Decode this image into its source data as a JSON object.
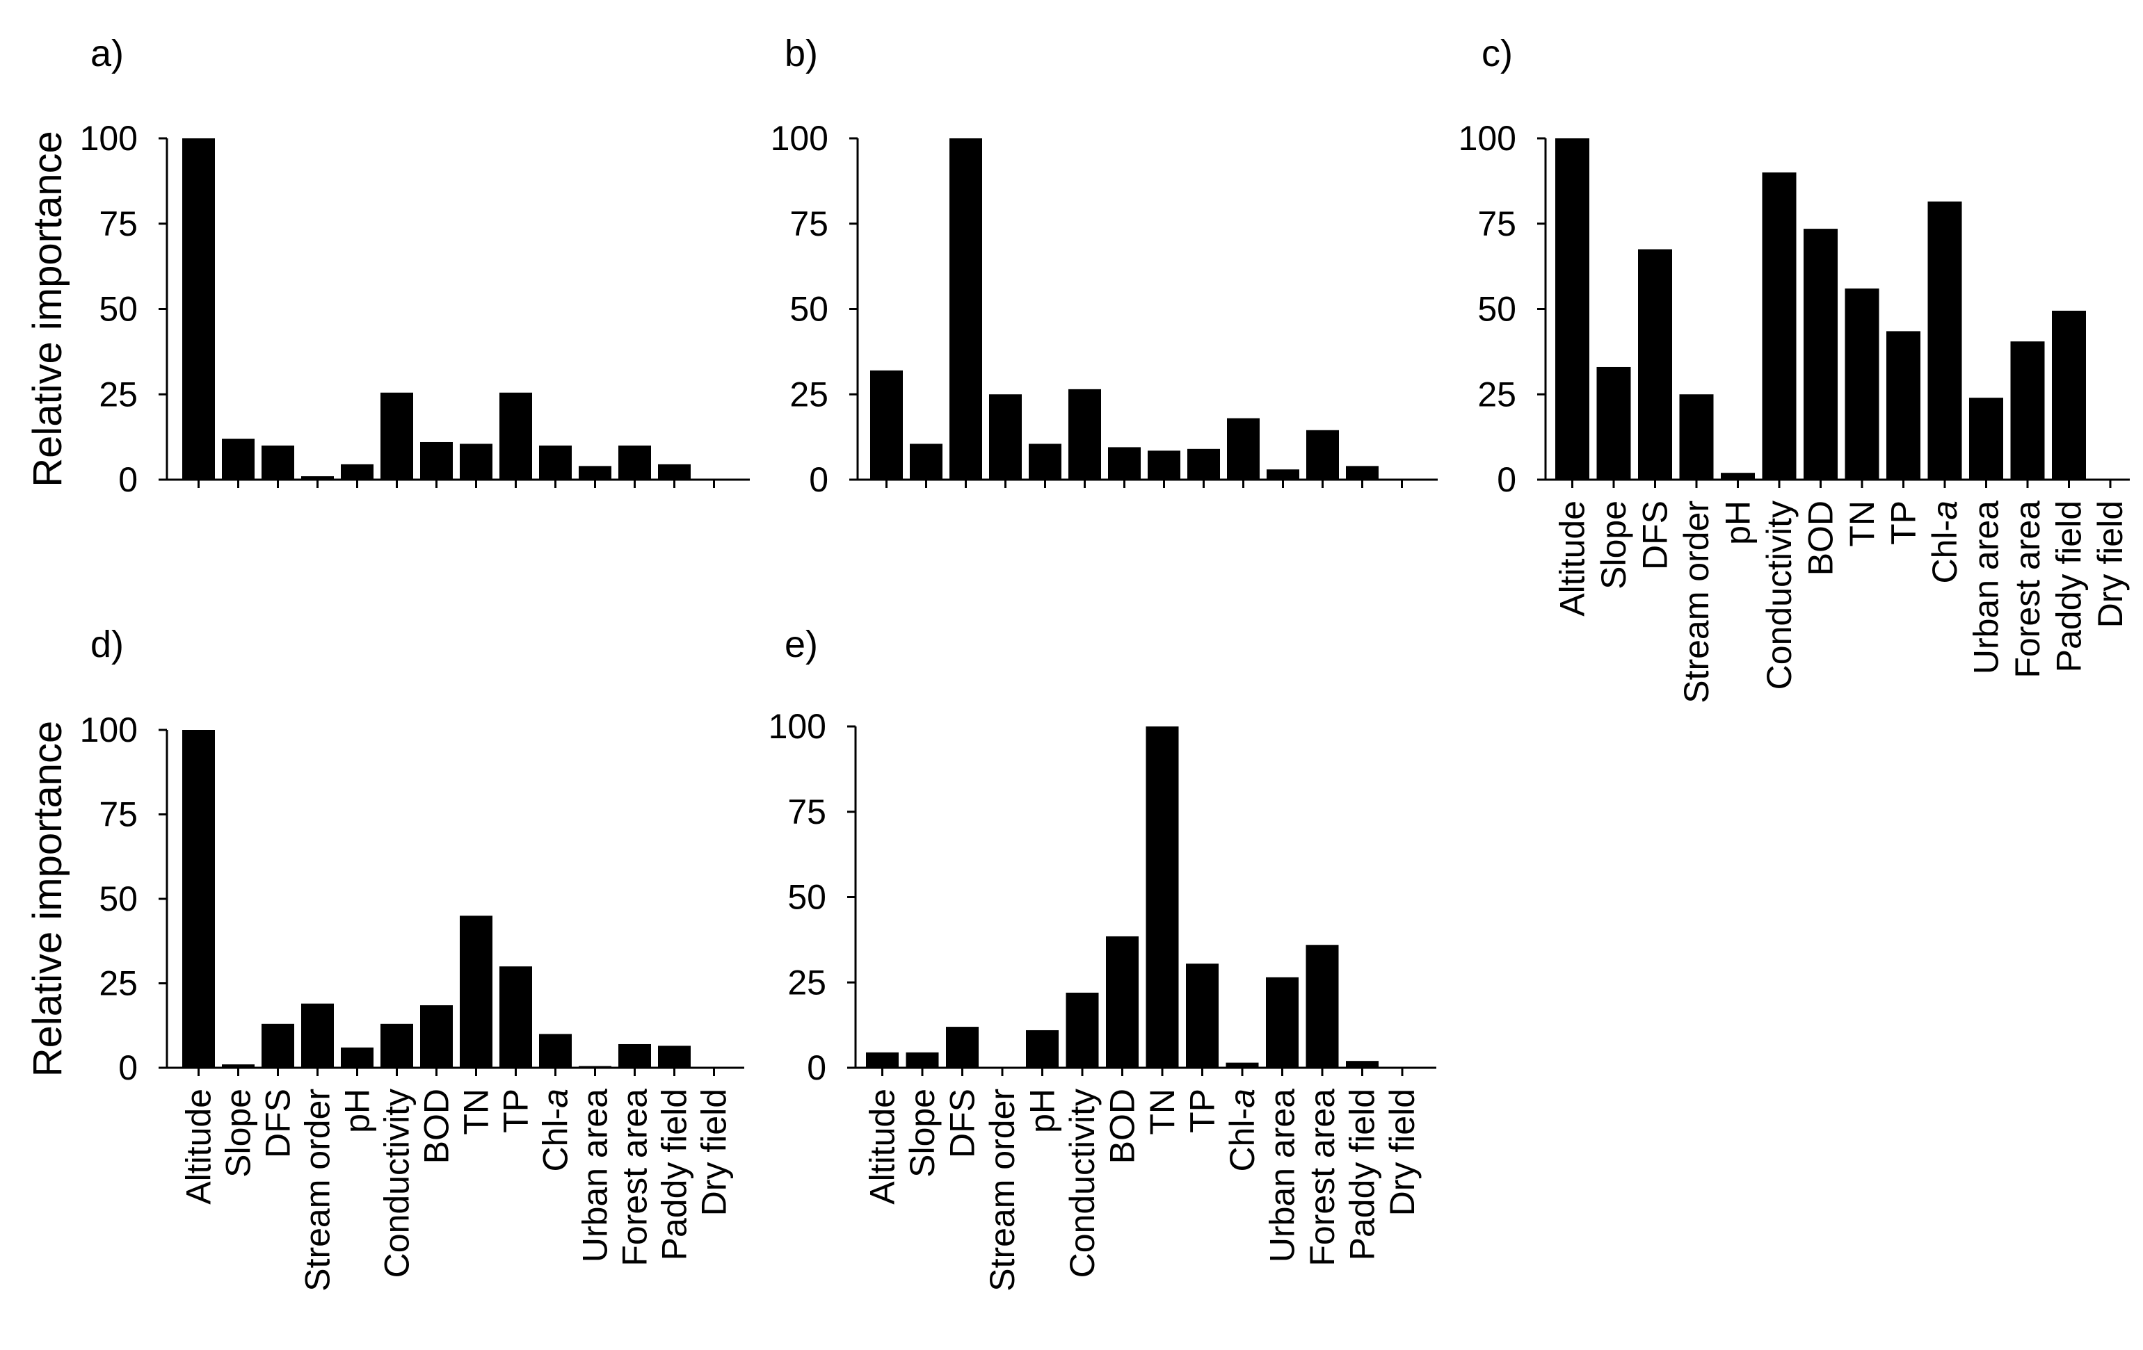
{
  "ylabel": "Relative importance",
  "chart_data": [
    {
      "panel": "a)",
      "type": "bar",
      "categories": [
        "Altitude",
        "Slope",
        "DFS",
        "Stream order",
        "pH",
        "Conductivity",
        "BOD",
        "TN",
        "TP",
        "Chl-a",
        "Urban area",
        "Forest area",
        "Paddy field",
        "Dry field"
      ],
      "values": [
        100,
        12,
        10,
        1,
        4.5,
        25.5,
        11,
        10.5,
        25.5,
        10,
        4,
        10,
        4.5,
        0
      ],
      "ylim": [
        0,
        100
      ],
      "yticks": [
        "0",
        "25",
        "50",
        "75",
        "100"
      ],
      "ylabel": "Relative importance",
      "show_category_labels": false
    },
    {
      "panel": "b)",
      "type": "bar",
      "categories": [
        "Altitude",
        "Slope",
        "DFS",
        "Stream order",
        "pH",
        "Conductivity",
        "BOD",
        "TN",
        "TP",
        "Chl-a",
        "Urban area",
        "Forest area",
        "Paddy field",
        "Dry field"
      ],
      "values": [
        32,
        10.5,
        100,
        25,
        10.5,
        26.5,
        9.5,
        8.5,
        9,
        18,
        3,
        14.5,
        4,
        0
      ],
      "ylim": [
        0,
        100
      ],
      "yticks": [
        "0",
        "25",
        "50",
        "75",
        "100"
      ],
      "ylabel": "",
      "show_category_labels": false
    },
    {
      "panel": "c)",
      "type": "bar",
      "categories": [
        "Altitude",
        "Slope",
        "DFS",
        "Stream order",
        "pH",
        "Conductivity",
        "BOD",
        "TN",
        "TP",
        "Chl-a",
        "Urban area",
        "Forest area",
        "Paddy field",
        "Dry field"
      ],
      "values": [
        100,
        33,
        67.5,
        25,
        2,
        90,
        73.5,
        56,
        43.5,
        81.5,
        24,
        40.5,
        49.5,
        0
      ],
      "ylim": [
        0,
        100
      ],
      "yticks": [
        "0",
        "25",
        "50",
        "75",
        "100"
      ],
      "ylabel": "",
      "show_category_labels": true
    },
    {
      "panel": "d)",
      "type": "bar",
      "categories": [
        "Altitude",
        "Slope",
        "DFS",
        "Stream order",
        "pH",
        "Conductivity",
        "BOD",
        "TN",
        "TP",
        "Chl-a",
        "Urban area",
        "Forest area",
        "Paddy field",
        "Dry field"
      ],
      "values": [
        100,
        1,
        13,
        19,
        6,
        13,
        18.5,
        45,
        30,
        10,
        0.5,
        7,
        6.5,
        0
      ],
      "ylim": [
        0,
        100
      ],
      "yticks": [
        "0",
        "25",
        "50",
        "75",
        "100"
      ],
      "ylabel": "Relative importance",
      "show_category_labels": true
    },
    {
      "panel": "e)",
      "type": "bar",
      "categories": [
        "Altitude",
        "Slope",
        "DFS",
        "Stream order",
        "pH",
        "Conductivity",
        "BOD",
        "TN",
        "TP",
        "Chl-a",
        "Urban area",
        "Forest area",
        "Paddy field",
        "Dry field"
      ],
      "values": [
        4.5,
        4.5,
        12,
        0,
        11,
        22,
        38.5,
        100,
        30.5,
        1.5,
        26.5,
        36,
        2,
        0
      ],
      "ylim": [
        0,
        100
      ],
      "yticks": [
        "0",
        "25",
        "50",
        "75",
        "100"
      ],
      "ylabel": "",
      "show_category_labels": true
    }
  ]
}
